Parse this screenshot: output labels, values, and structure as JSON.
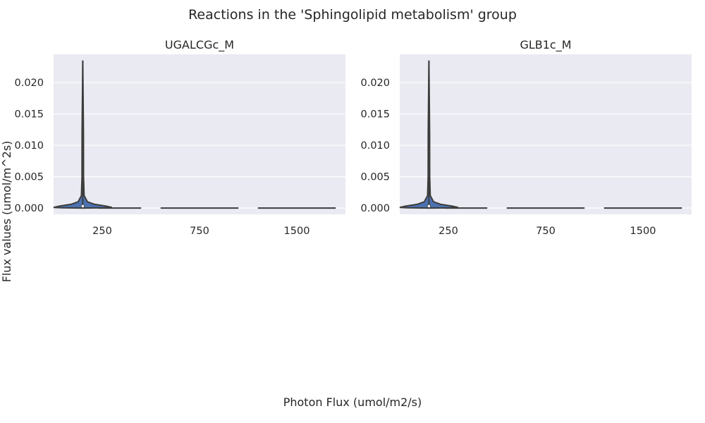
{
  "title": "Reactions in the 'Sphingolipid metabolism' group",
  "xlabel": "Photon Flux (umol/m2/s)",
  "ylabel": "Flux values (umol/m^2s)",
  "colors": {
    "background": "#eaeaf2",
    "grid": "#ffffff",
    "violin": "#4c72b0",
    "outline": "#3d3d3d"
  },
  "chart_data": [
    {
      "type": "violin",
      "title": "UGALCGc_M",
      "categories": [
        "250",
        "750",
        "1500"
      ],
      "ylim": [
        -0.001,
        0.0245
      ],
      "yticks": [
        "0.000",
        "0.005",
        "0.010",
        "0.015",
        "0.020"
      ],
      "series": [
        {
          "category": "250",
          "min": 0.0,
          "max": 0.0235,
          "median": 0.0003,
          "q1": 0.0001,
          "q3": 0.0005
        },
        {
          "category": "750",
          "min": 0.0,
          "max": 0.0,
          "median": 0.0
        },
        {
          "category": "1500",
          "min": 0.0,
          "max": 0.0,
          "median": 0.0
        }
      ]
    },
    {
      "type": "violin",
      "title": "GLB1c_M",
      "categories": [
        "250",
        "750",
        "1500"
      ],
      "ylim": [
        -0.001,
        0.0245
      ],
      "yticks": [
        "0.000",
        "0.005",
        "0.010",
        "0.015",
        "0.020"
      ],
      "series": [
        {
          "category": "250",
          "min": 0.0,
          "max": 0.0235,
          "median": 0.0003,
          "q1": 0.0001,
          "q3": 0.0005
        },
        {
          "category": "750",
          "min": 0.0,
          "max": 0.0,
          "median": 0.0
        },
        {
          "category": "1500",
          "min": 0.0,
          "max": 0.0,
          "median": 0.0
        }
      ]
    }
  ]
}
